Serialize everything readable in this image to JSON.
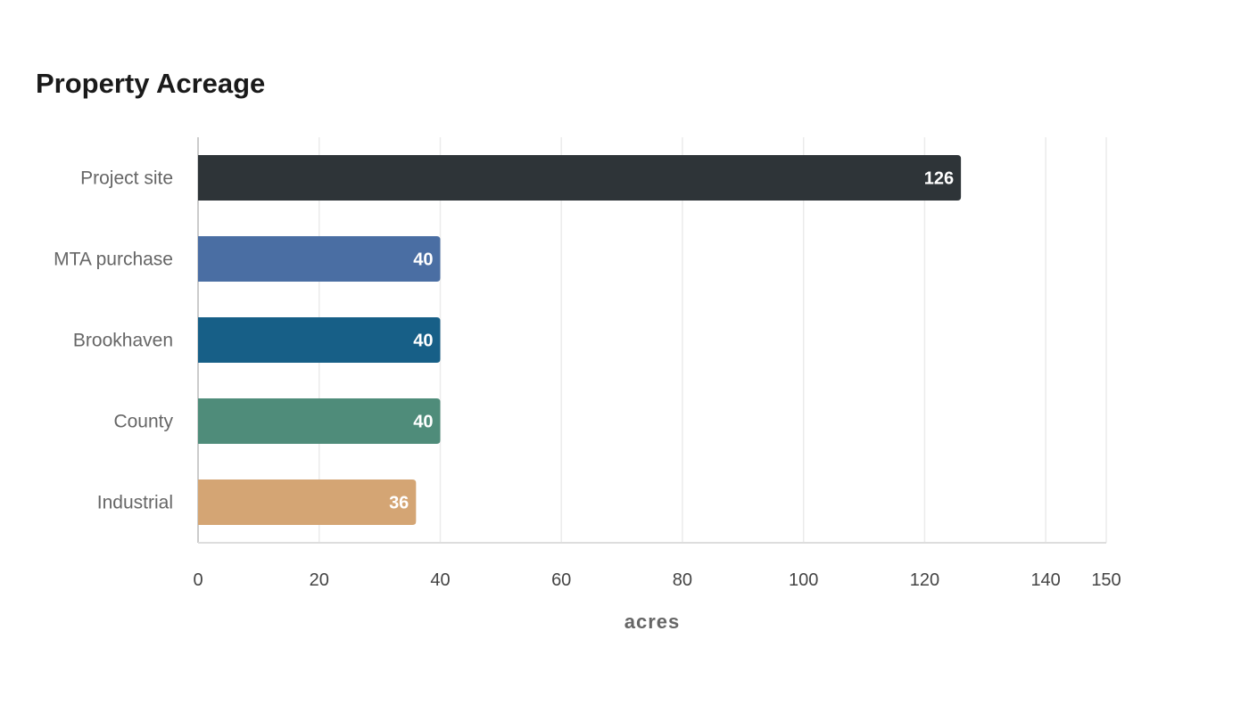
{
  "chart_data": {
    "type": "bar",
    "orientation": "horizontal",
    "title": "Property Acreage",
    "xlabel": "acres",
    "ylabel": "",
    "categories": [
      "Project site",
      "MTA purchase",
      "Brookhaven",
      "County",
      "Industrial"
    ],
    "values": [
      126,
      40,
      40,
      40,
      36
    ],
    "value_labels": [
      "126",
      "40",
      "40",
      "40",
      "36"
    ],
    "colors": [
      "#2e3438",
      "#4a6ea3",
      "#175f87",
      "#4f8c7a",
      "#d4a574"
    ],
    "xlim": [
      0,
      150
    ],
    "xticks": [
      0,
      20,
      40,
      60,
      80,
      100,
      120,
      140,
      150
    ],
    "grid": true,
    "legend": "none"
  }
}
